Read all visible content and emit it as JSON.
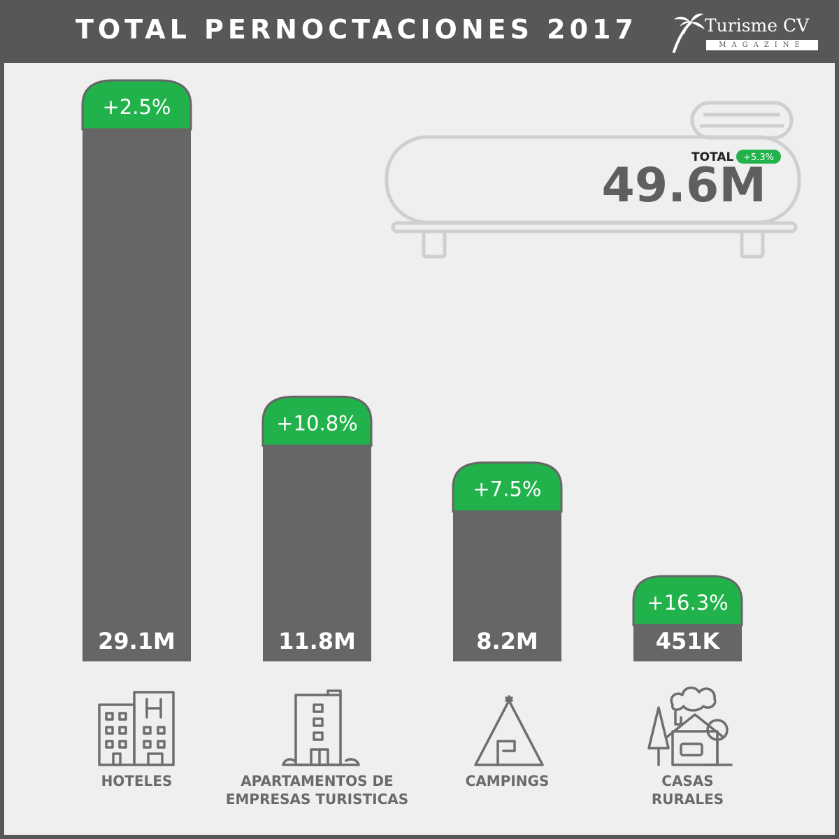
{
  "header": {
    "title": "TOTAL PERNOCTACIONES 2017",
    "logo_name": "Turisme CV",
    "logo_sub": "MAGAZINE"
  },
  "colors": {
    "bar": "#666666",
    "accent": "#21b24b",
    "background": "#efefef",
    "header": "#575757"
  },
  "chart_data": {
    "type": "bar",
    "title": "TOTAL PERNOCTACIONES 2017",
    "categories": [
      [
        "HOTELES"
      ],
      [
        "APARTAMENTOS DE",
        "EMPRESAS TURISTICAS"
      ],
      [
        "CAMPINGS"
      ],
      [
        "CASAS",
        "RURALES"
      ]
    ],
    "values": [
      29100000,
      11800000,
      8200000,
      451000
    ],
    "value_labels": [
      "29.1M",
      "11.8M",
      "8.2M",
      "451K"
    ],
    "change_labels": [
      "+2.5%",
      "+10.8%",
      "+7.5%",
      "+16.3%"
    ],
    "icons": [
      "hotel-building-icon",
      "apartment-building-icon",
      "tent-icon",
      "rural-house-icon"
    ],
    "total": {
      "label": "TOTAL",
      "change": "+5.3%",
      "value": "49.6M"
    }
  }
}
